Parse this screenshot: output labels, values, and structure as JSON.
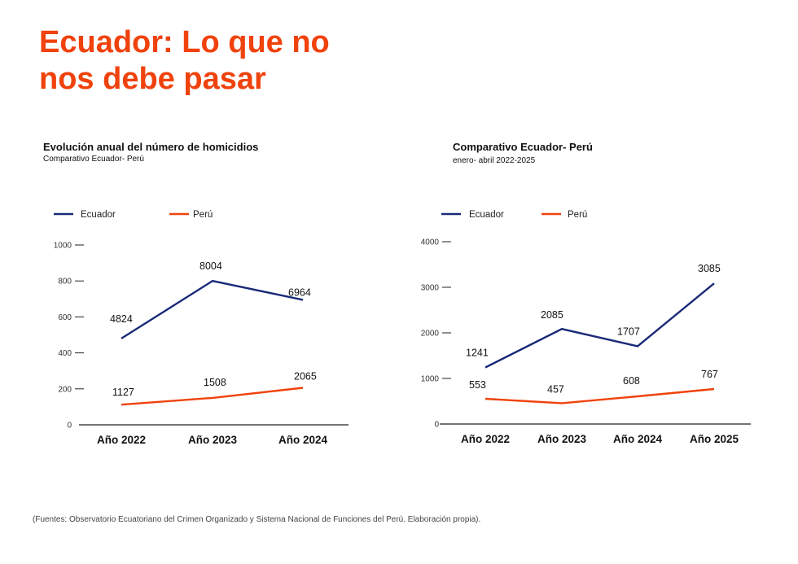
{
  "headline": "Ecuador: Lo que no nos debe pasar",
  "colors": {
    "ecuador": "#1a2a78",
    "peru": "#f0420c",
    "accent": "#f0420c",
    "axis": "#222222"
  },
  "chart_data": [
    {
      "type": "line",
      "title": "Evolución anual del número de homicidios",
      "subtitle": "Comparativo Ecuador- Perú",
      "categories": [
        "Año 2022",
        "Año 2023",
        "Año 2024"
      ],
      "y_ticks": [
        "0",
        "200",
        "400",
        "600",
        "800",
        "1000"
      ],
      "ylim": [
        0,
        1000
      ],
      "legend_position": "top-left",
      "series": [
        {
          "name": "Ecuador",
          "plot_values": [
            480,
            800,
            695
          ],
          "labels": [
            "4824",
            "8004",
            "6964"
          ]
        },
        {
          "name": "Perú",
          "plot_values": [
            112,
            150,
            206
          ],
          "labels": [
            "1127",
            "1508",
            "2065"
          ]
        }
      ]
    },
    {
      "type": "line",
      "title": "Comparativo Ecuador- Perú",
      "subtitle": "enero- abril 2022-2025",
      "categories": [
        "Año 2022",
        "Año 2023",
        "Año 2024",
        "Año 2025"
      ],
      "y_ticks": [
        "0",
        "1000",
        "2000",
        "3000",
        "4000"
      ],
      "ylim": [
        0,
        4000
      ],
      "legend_position": "top-left",
      "series": [
        {
          "name": "Ecuador",
          "plot_values": [
            1241,
            2085,
            1707,
            3085
          ],
          "labels": [
            "1241",
            "2085",
            "1707",
            "3085"
          ]
        },
        {
          "name": "Perú",
          "plot_values": [
            553,
            457,
            608,
            767
          ],
          "labels": [
            "553",
            "457",
            "608",
            "767"
          ]
        }
      ]
    }
  ],
  "source": "(Fuentes: Observatorio Ecuatoriano del Crimen Organizado y Sistema Nacional de Funciones del Perú. Elaboración propia)."
}
